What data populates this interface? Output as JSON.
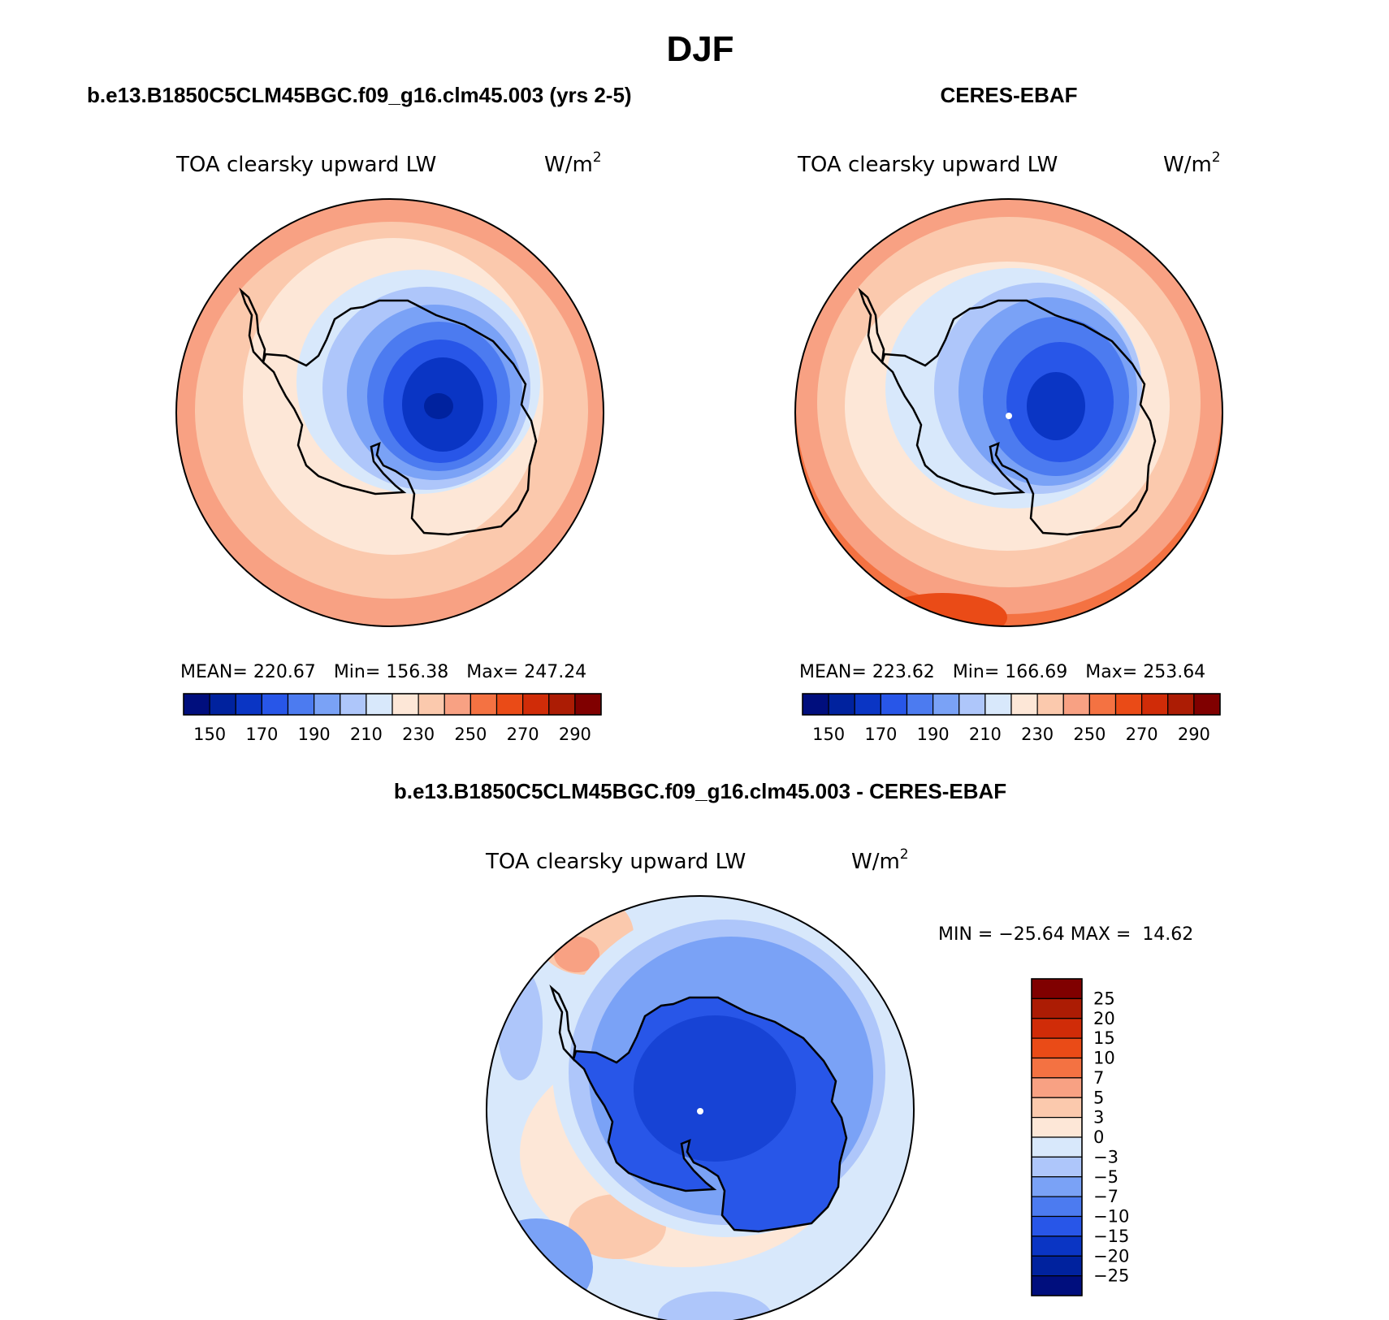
{
  "figure": {
    "title": "DJF"
  },
  "panels": [
    {
      "id": "model",
      "header": "b.e13.B1850C5CLM45BGC.f09_g16.clm45.003 (yrs 2-5)",
      "variable": "TOA clearsky upward LW",
      "units_base": "W/m",
      "units_exp": "2",
      "stats": {
        "mean": "220.67",
        "min": "156.38",
        "max": "247.24"
      },
      "colorbar_ticks": [
        "150",
        "170",
        "190",
        "210",
        "230",
        "250",
        "270",
        "290"
      ]
    },
    {
      "id": "obs",
      "header": "CERES-EBAF",
      "variable": "TOA clearsky upward LW",
      "units_base": "W/m",
      "units_exp": "2",
      "stats": {
        "mean": "223.62",
        "min": "166.69",
        "max": "253.64"
      },
      "colorbar_ticks": [
        "150",
        "170",
        "190",
        "210",
        "230",
        "250",
        "270",
        "290"
      ]
    }
  ],
  "difference": {
    "header": "b.e13.B1850C5CLM45BGC.f09_g16.clm45.003 - CERES-EBAF",
    "variable": "TOA clearsky upward LW",
    "units_base": "W/m",
    "units_exp": "2",
    "min_label": "MIN =",
    "min": "−25.64",
    "max_label": "MAX =",
    "max": "14.62",
    "colorbar_ticks": [
      "25",
      "20",
      "15",
      "10",
      "7",
      "5",
      "3",
      "0",
      "−3",
      "−5",
      "−7",
      "−10",
      "−15",
      "−20",
      "−25"
    ]
  },
  "stat_labels": {
    "mean": "MEAN=",
    "min": "Min=",
    "max": "Max="
  },
  "palettes": {
    "absolute": [
      "#000e7d",
      "#00229e",
      "#0a35c4",
      "#2856e8",
      "#4c7bf0",
      "#7aa2f6",
      "#aec6fa",
      "#d8e8fb",
      "#fde7d7",
      "#fbc9ad",
      "#f8a183",
      "#f47242",
      "#ea4b17",
      "#d02c08",
      "#ac1c04",
      "#800000"
    ],
    "difference": [
      "#800000",
      "#ac1c04",
      "#d02c08",
      "#ea4b17",
      "#f47242",
      "#f8a183",
      "#fbc9ad",
      "#fde7d7",
      "#d8e8fb",
      "#aec6fa",
      "#7aa2f6",
      "#4c7bf0",
      "#2856e8",
      "#0a35c4",
      "#00229e",
      "#000e7d"
    ]
  }
}
